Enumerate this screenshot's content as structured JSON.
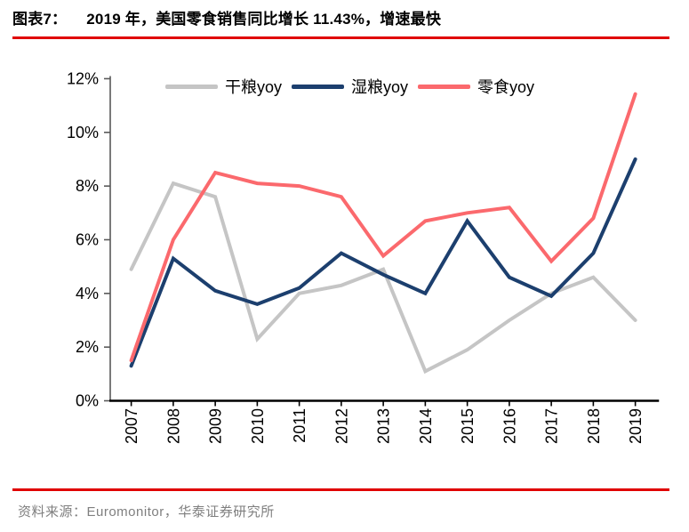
{
  "header": {
    "title_prefix": "图表7：",
    "title_text": "2019 年，美国零食销售同比增长 11.43%，增速最快",
    "rule_color": "#e00000"
  },
  "footer": {
    "source_text": "资料来源：Euromonitor，华泰证券研究所",
    "rule_color": "#e00000"
  },
  "chart_data": {
    "type": "line",
    "title": "2019 年，美国零食销售同比增长 11.43%，增速最快",
    "categories": [
      "2007",
      "2008",
      "2009",
      "2010",
      "2011",
      "2012",
      "2013",
      "2014",
      "2015",
      "2016",
      "2017",
      "2018",
      "2019"
    ],
    "series": [
      {
        "name": "干粮yoy",
        "color": "#c5c5c5",
        "values": [
          4.9,
          8.1,
          7.6,
          2.3,
          4.0,
          4.3,
          4.9,
          1.1,
          1.9,
          3.0,
          4.0,
          4.6,
          3.0
        ]
      },
      {
        "name": "湿粮yoy",
        "color": "#1c3f6e",
        "values": [
          1.3,
          5.3,
          4.1,
          3.6,
          4.2,
          5.5,
          4.7,
          4.0,
          6.7,
          4.6,
          3.9,
          5.5,
          9.0
        ]
      },
      {
        "name": "零食yoy",
        "color": "#fb696d",
        "values": [
          1.5,
          6.0,
          8.5,
          8.1,
          8.0,
          7.6,
          5.4,
          6.7,
          7.0,
          7.2,
          5.2,
          6.8,
          11.43
        ]
      }
    ],
    "ylim": [
      0,
      12
    ],
    "y_tick_step": 2,
    "y_tick_labels": [
      "0%",
      "2%",
      "4%",
      "6%",
      "8%",
      "10%",
      "12%"
    ],
    "xlabel": "",
    "ylabel": "",
    "grid": false,
    "legend_position": "top",
    "y_axis_color": "#595959",
    "x_axis_color": "#000000",
    "tick_label_color": "#000000"
  }
}
